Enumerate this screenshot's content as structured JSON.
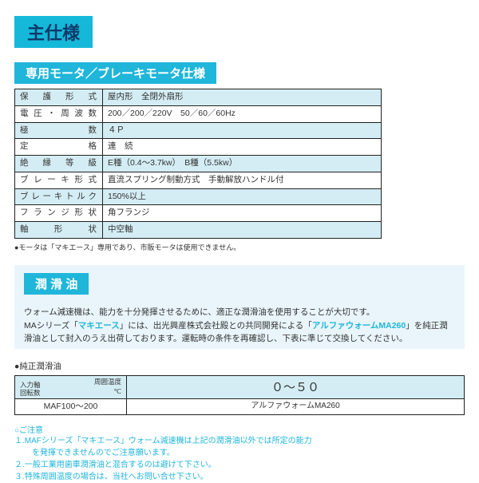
{
  "colors": {
    "title_bg": "#16b8d9",
    "title_fg": "#0a3a6a",
    "section_bg": "#1fb6d9",
    "section_fg": "#ffffff",
    "row_odd": "#d4edf4",
    "row_even": "#ffffff",
    "info_bg": "#e9f5fa",
    "accent_text": "#1fb6d9",
    "footnote_color": "#333333"
  },
  "title": "主仕様",
  "section1": {
    "header": "専用モータ／ブレーキモータ仕様",
    "footnote": "●モータは「マキエース」専用であり、市販モータは使用できません。",
    "rows": [
      {
        "label": "保 護 形 式",
        "value": "屋内形　全閉外扇形"
      },
      {
        "label": "電圧・周波数",
        "value": "200／200／220V　50／60／60Hz"
      },
      {
        "label": "極　　　　数",
        "value": "４Ｐ"
      },
      {
        "label": "定　　　　格",
        "value": "連　続"
      },
      {
        "label": "絶 縁 等 級",
        "value": "E種（0.4～3.7kw）　B種（5.5kw）"
      },
      {
        "label": "ブレーキ形式",
        "value": "直流スプリング制動方式　手動解放ハンドル付"
      },
      {
        "label": "ブレーキトルク",
        "value": "150%以上"
      },
      {
        "label": "フランジ形状",
        "value": "角フランジ"
      },
      {
        "label": "軸　形　状",
        "value": "中空軸"
      }
    ]
  },
  "section2": {
    "header": "潤 滑 油",
    "paragraph": "ウォーム減速機は、能力を十分発揮させるために、適正な潤滑油を使用することが大切です。\nMAシリーズ「マキエース」には、出光興産株式会社殿との共同開発による「アルファウォームMA260」を純正潤滑油として封入のうえ出荷しております。運転時の条件を再確認し、下表に準じて交換してください。"
  },
  "lubricant": {
    "heading": "●純正潤滑油",
    "row1_left_top": "周囲温度",
    "row1_left_bottom": "℃",
    "row1_left2": "入力軸\n回転数",
    "row1_right": "０～５０",
    "row2_left": "MAF100～200",
    "row2_right": "アルファウォームMA260"
  },
  "caution": {
    "head": "○ご注意",
    "items": [
      "１.MAFシリーズ「マキエース」ウォーム減速機は上記の潤滑油以外では所定の能力\n　を発揮できませんのでご注意願います。",
      "２.一般工業用歯車潤滑油と混合するのは避けて下さい。",
      "３.特殊周囲温度の場合は、当社へお問い合せ下さい。"
    ]
  }
}
